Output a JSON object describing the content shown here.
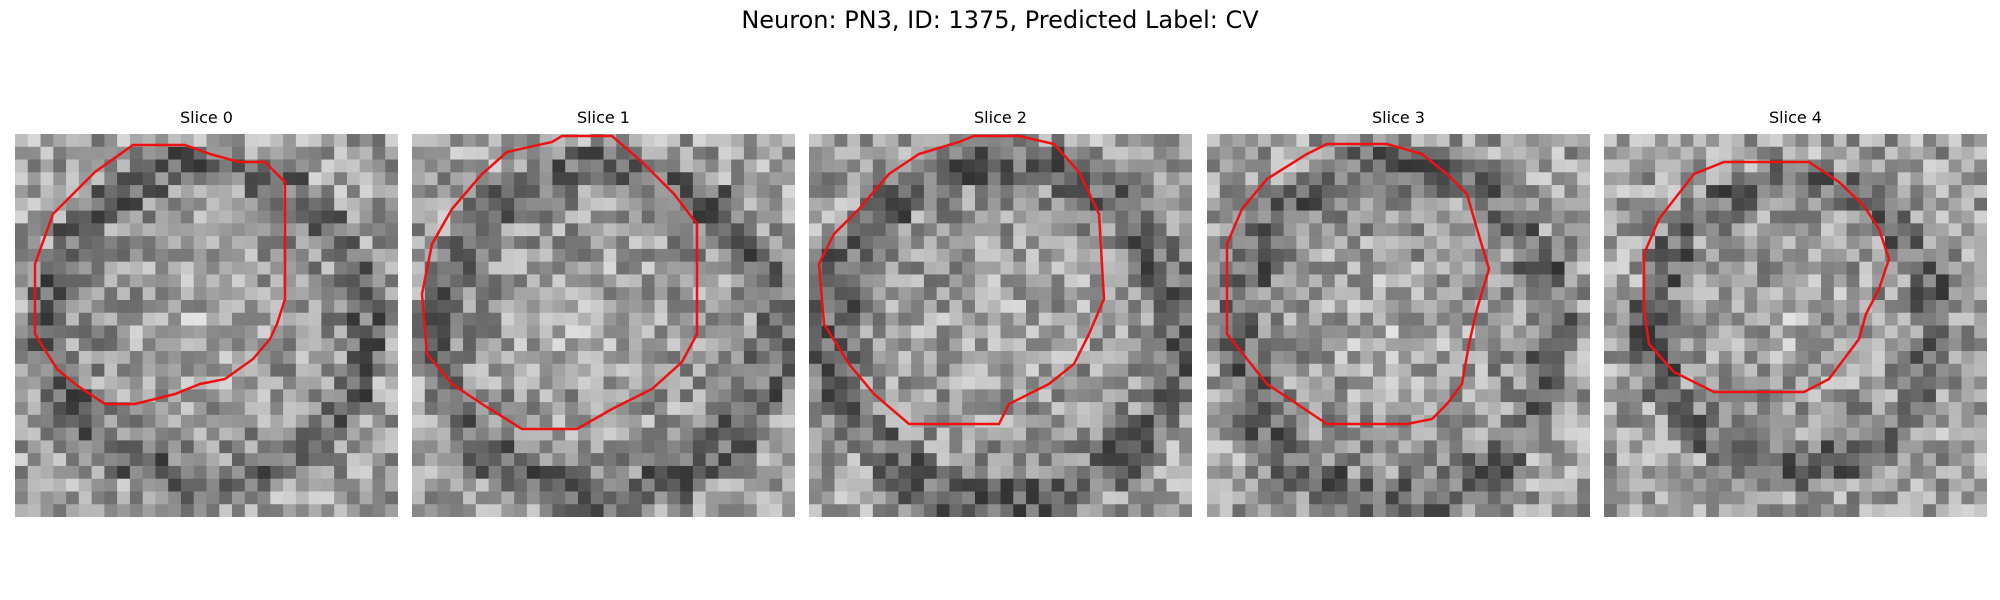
{
  "figure": {
    "title": "Neuron: PN3, ID: 1375, Predicted Label: CV"
  },
  "contour_color": "#ee1111",
  "panels": [
    {
      "title": "Slice 0"
    },
    {
      "title": "Slice 1"
    },
    {
      "title": "Slice 2"
    },
    {
      "title": "Slice 3"
    },
    {
      "title": "Slice 4"
    }
  ]
}
